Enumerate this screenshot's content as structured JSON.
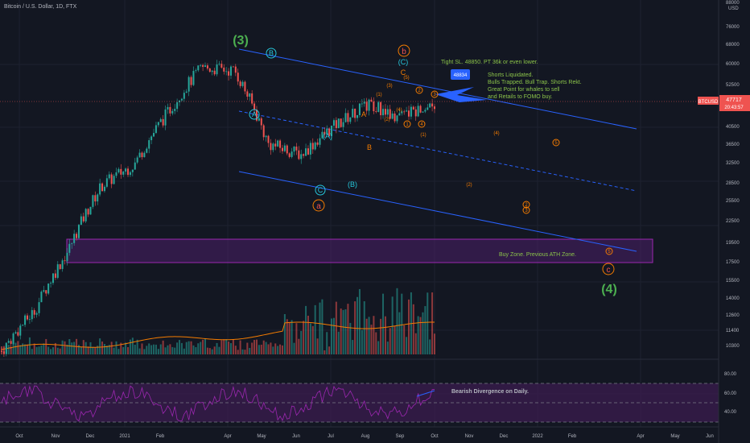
{
  "header": {
    "title": "Bitcoin / U.S. Dollar, 1D, FTX"
  },
  "colors": {
    "background": "#131722",
    "grid": "#1e2230",
    "up": "#26a69a",
    "down": "#ef5350",
    "channel": "#2962ff",
    "wave_green": "#4caf50",
    "wave_cyan": "#26c6da",
    "wave_orange": "#f57c00",
    "rsi_line": "#9c27b0",
    "rsi_band": "#3b1c4f",
    "buy_zone": "#4a1f68",
    "text": "#b2b5be",
    "annotation_text": "#8bc34a",
    "price_label": "#ef5350",
    "callout": "#2962ff"
  },
  "price_axis": {
    "currency": "USD",
    "ticks": [
      "88000",
      "76000",
      "68000",
      "60000",
      "52500",
      "47717",
      "40500",
      "36500",
      "32500",
      "28500",
      "25500",
      "22500",
      "19500",
      "17500",
      "15500",
      "14000",
      "12600",
      "11400",
      "10300"
    ],
    "current_price": "47717",
    "current_ticker": "BTCUSD",
    "countdown": "20:43:57"
  },
  "rsi_axis": {
    "ticks": [
      "80.00",
      "60.00",
      "40.00"
    ]
  },
  "time_axis": {
    "ticks": [
      "Oct",
      "Nov",
      "Dec",
      "2021",
      "Feb",
      "Apr",
      "May",
      "Jun",
      "Jul",
      "Aug",
      "Sep",
      "Oct",
      "Nov",
      "Dec",
      "2022",
      "Feb",
      "Apr",
      "May",
      "Jun"
    ]
  },
  "annotations": {
    "trade_note": "Tight SL. 48850. PT 36k or even lower.",
    "callout_price": "48834",
    "liquidation_note": [
      "Shorts Liquidated.",
      "Bulls Trapped. Bull Trap. Shorts Rekt.",
      "Great Point for whales to sell",
      "and Retails to FOMO buy."
    ],
    "buy_zone": "Buy Zone. Previous ATH Zone.",
    "divergence": "Bearish Divergence on Daily."
  },
  "waves": {
    "w3": "(3)",
    "w4": "(4)",
    "a_circ": "A",
    "b_circ": "B",
    "c_circ": "C",
    "a_paren": "(A)",
    "b_paren": "(B)",
    "c_paren": "(C)",
    "a_small": "a",
    "b_small": "b",
    "c_small": "c",
    "A": "A",
    "B": "B",
    "C": "C",
    "n1": "(1)",
    "n2": "(2)",
    "n3": "(3)",
    "n4": "(4)",
    "n5": "(5)",
    "p1": "(1)",
    "p2": "(2)",
    "p3": "(3)",
    "p4": "(4)",
    "d1": "1",
    "d2": "2",
    "d3": "3",
    "d4": "4",
    "d5": "5",
    "s2": "2",
    "s3": "3",
    "s5": "5"
  },
  "chart_data": {
    "type": "candlestick",
    "title": "Bitcoin / U.S. Dollar, 1D, FTX",
    "x_range": [
      "2020-10-01",
      "2021-10-05"
    ],
    "ylim": [
      10300,
      88000
    ],
    "monthly_closes": [
      {
        "month": "2020-10",
        "close": 13800
      },
      {
        "month": "2020-11",
        "close": 19700
      },
      {
        "month": "2020-12",
        "close": 29000
      },
      {
        "month": "2021-01",
        "close": 33100
      },
      {
        "month": "2021-02",
        "close": 45100
      },
      {
        "month": "2021-03",
        "close": 58800
      },
      {
        "month": "2021-04",
        "close": 57700
      },
      {
        "month": "2021-05",
        "close": 37300
      },
      {
        "month": "2021-06",
        "close": 35000
      },
      {
        "month": "2021-07",
        "close": 41500
      },
      {
        "month": "2021-08",
        "close": 47100
      },
      {
        "month": "2021-09",
        "close": 43800
      }
    ],
    "current_price": 47717,
    "rsi_levels": [
      40,
      60,
      80
    ]
  }
}
